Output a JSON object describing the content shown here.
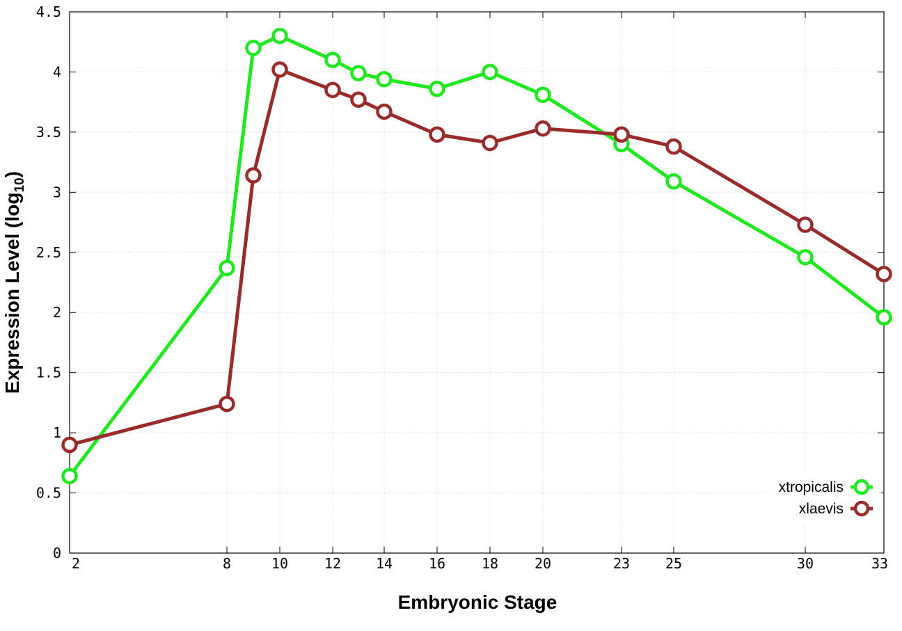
{
  "chart_data": {
    "type": "line",
    "xlabel": "Embryonic Stage",
    "ylabel": {
      "prefix": "Expression Level (log",
      "subscript": "10",
      "suffix": ")"
    },
    "x_ticks": [
      2,
      8,
      10,
      12,
      14,
      16,
      18,
      20,
      23,
      25,
      30,
      33
    ],
    "x_categories_plotted": [
      2,
      8,
      9,
      10,
      12,
      13,
      14,
      16,
      18,
      20,
      23,
      25,
      30,
      33
    ],
    "ylim": [
      0,
      4.5
    ],
    "y_ticks": [
      "0",
      "0.5",
      "1",
      "1.5",
      "2",
      "2.5",
      "3",
      "3.5",
      "4",
      "4.5"
    ],
    "grid": true,
    "legend_position": "bottom-right",
    "series": [
      {
        "name": "xtropicalis",
        "color": "#1ee81e",
        "points": [
          {
            "x": 2,
            "y": 0.64
          },
          {
            "x": 8,
            "y": 2.37
          },
          {
            "x": 9,
            "y": 4.2
          },
          {
            "x": 10,
            "y": 4.3
          },
          {
            "x": 12,
            "y": 4.1
          },
          {
            "x": 13,
            "y": 3.99
          },
          {
            "x": 14,
            "y": 3.94
          },
          {
            "x": 16,
            "y": 3.86
          },
          {
            "x": 18,
            "y": 4.0
          },
          {
            "x": 20,
            "y": 3.81
          },
          {
            "x": 23,
            "y": 3.4
          },
          {
            "x": 25,
            "y": 3.09
          },
          {
            "x": 30,
            "y": 2.46
          },
          {
            "x": 33,
            "y": 1.96
          }
        ]
      },
      {
        "name": "xlaevis",
        "color": "#992b2b",
        "points": [
          {
            "x": 2,
            "y": 0.9
          },
          {
            "x": 8,
            "y": 1.24
          },
          {
            "x": 9,
            "y": 3.14
          },
          {
            "x": 10,
            "y": 4.02
          },
          {
            "x": 12,
            "y": 3.85
          },
          {
            "x": 13,
            "y": 3.77
          },
          {
            "x": 14,
            "y": 3.67
          },
          {
            "x": 16,
            "y": 3.48
          },
          {
            "x": 18,
            "y": 3.41
          },
          {
            "x": 20,
            "y": 3.53
          },
          {
            "x": 23,
            "y": 3.48
          },
          {
            "x": 25,
            "y": 3.38
          },
          {
            "x": 30,
            "y": 2.73
          },
          {
            "x": 33,
            "y": 2.32
          }
        ]
      }
    ]
  }
}
